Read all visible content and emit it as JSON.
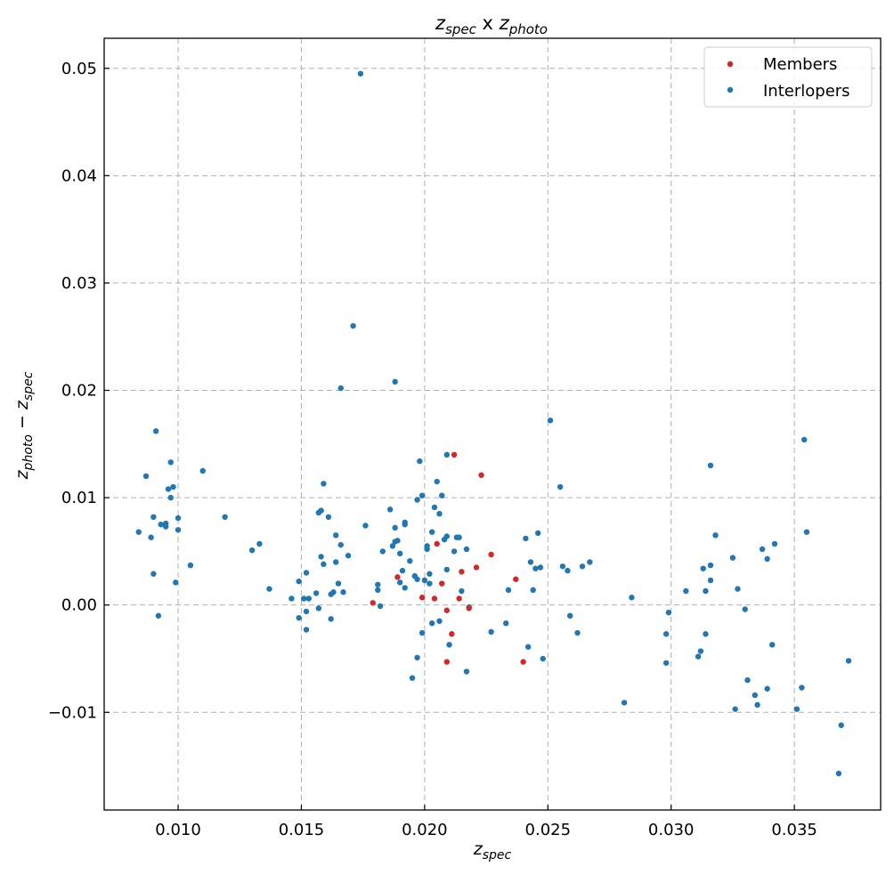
{
  "chart_data": {
    "type": "scatter",
    "title": {
      "base1": "z",
      "sub1": "spec",
      "sep": " x ",
      "base2": "z",
      "sub2": "photo"
    },
    "xlabel": {
      "base": "z",
      "sub": "spec"
    },
    "ylabel": {
      "base1": "z",
      "sub1": "photo",
      "minus": " − ",
      "base2": "z",
      "sub2": "spec"
    },
    "xlim": [
      0.007,
      0.0385
    ],
    "ylim": [
      -0.0191,
      0.0528
    ],
    "xticks": [
      0.01,
      0.015,
      0.02,
      0.025,
      0.03,
      0.035
    ],
    "xtick_labels": [
      "0.010",
      "0.015",
      "0.020",
      "0.025",
      "0.030",
      "0.035"
    ],
    "yticks": [
      -0.01,
      0.0,
      0.01,
      0.02,
      0.03,
      0.04,
      0.05
    ],
    "ytick_labels": [
      "−0.01",
      "0.00",
      "0.01",
      "0.02",
      "0.03",
      "0.04",
      "0.05"
    ],
    "grid": true,
    "legend_position": "top-right",
    "series": [
      {
        "name": "Members",
        "color": "#d62728",
        "points": [
          [
            0.0179,
            0.0002
          ],
          [
            0.0189,
            0.0026
          ],
          [
            0.0199,
            0.0007
          ],
          [
            0.0204,
            0.0006
          ],
          [
            0.0205,
            0.0057
          ],
          [
            0.0207,
            0.002
          ],
          [
            0.0209,
            -0.0005
          ],
          [
            0.0209,
            -0.0053
          ],
          [
            0.0211,
            -0.0027
          ],
          [
            0.0212,
            0.014
          ],
          [
            0.0214,
            0.0006
          ],
          [
            0.0215,
            0.0031
          ],
          [
            0.0218,
            -0.0003
          ],
          [
            0.0221,
            0.0035
          ],
          [
            0.0223,
            0.0121
          ],
          [
            0.0227,
            0.0047
          ],
          [
            0.0237,
            0.0024
          ],
          [
            0.024,
            -0.0053
          ]
        ]
      },
      {
        "name": "Interlopers",
        "color": "#1f77b4",
        "points": [
          [
            0.0084,
            0.0068
          ],
          [
            0.0087,
            0.012
          ],
          [
            0.0089,
            0.0063
          ],
          [
            0.009,
            0.0029
          ],
          [
            0.009,
            0.0082
          ],
          [
            0.0091,
            0.0162
          ],
          [
            0.0092,
            -0.001
          ],
          [
            0.0093,
            0.0075
          ],
          [
            0.0095,
            0.0076
          ],
          [
            0.0095,
            0.0073
          ],
          [
            0.0096,
            0.0108
          ],
          [
            0.0097,
            0.0133
          ],
          [
            0.0097,
            0.01
          ],
          [
            0.0098,
            0.011
          ],
          [
            0.0099,
            0.0021
          ],
          [
            0.01,
            0.007
          ],
          [
            0.01,
            0.0081
          ],
          [
            0.0105,
            0.0037
          ],
          [
            0.011,
            0.0125
          ],
          [
            0.0119,
            0.0082
          ],
          [
            0.013,
            0.0051
          ],
          [
            0.0133,
            0.0057
          ],
          [
            0.0137,
            0.0015
          ],
          [
            0.0146,
            0.0006
          ],
          [
            0.0149,
            -0.0012
          ],
          [
            0.0149,
            0.0022
          ],
          [
            0.0151,
            0.0006
          ],
          [
            0.0152,
            0.003
          ],
          [
            0.0152,
            -0.0006
          ],
          [
            0.0152,
            -0.0023
          ],
          [
            0.0153,
            0.0006
          ],
          [
            0.0156,
            0.0011
          ],
          [
            0.0157,
            -0.0003
          ],
          [
            0.0157,
            0.0086
          ],
          [
            0.0158,
            0.0088
          ],
          [
            0.0158,
            0.0045
          ],
          [
            0.0159,
            0.0038
          ],
          [
            0.0159,
            0.0113
          ],
          [
            0.0161,
            0.0082
          ],
          [
            0.0162,
            0.001
          ],
          [
            0.0162,
            -0.0013
          ],
          [
            0.0163,
            0.0012
          ],
          [
            0.0164,
            0.0065
          ],
          [
            0.0164,
            0.004
          ],
          [
            0.0165,
            0.002
          ],
          [
            0.0166,
            0.0202
          ],
          [
            0.0166,
            0.0056
          ],
          [
            0.0167,
            0.0012
          ],
          [
            0.0169,
            0.0046
          ],
          [
            0.0171,
            0.026
          ],
          [
            0.0174,
            0.0495
          ],
          [
            0.0176,
            0.0074
          ],
          [
            0.0181,
            0.0014
          ],
          [
            0.0181,
            0.0019
          ],
          [
            0.0182,
            -0.0001
          ],
          [
            0.0183,
            0.005
          ],
          [
            0.0186,
            0.0089
          ],
          [
            0.0187,
            0.0055
          ],
          [
            0.0188,
            0.0208
          ],
          [
            0.0188,
            0.0072
          ],
          [
            0.0188,
            0.0059
          ],
          [
            0.0189,
            0.006
          ],
          [
            0.019,
            0.0048
          ],
          [
            0.019,
            0.0021
          ],
          [
            0.0191,
            0.0032
          ],
          [
            0.0192,
            0.0016
          ],
          [
            0.0192,
            0.0077
          ],
          [
            0.0192,
            0.0075
          ],
          [
            0.0194,
            0.0041
          ],
          [
            0.0195,
            -0.0068
          ],
          [
            0.0196,
            0.0027
          ],
          [
            0.0197,
            -0.0049
          ],
          [
            0.0197,
            0.0024
          ],
          [
            0.0197,
            0.0098
          ],
          [
            0.0198,
            0.0134
          ],
          [
            0.0199,
            -0.0026
          ],
          [
            0.0199,
            0.0102
          ],
          [
            0.02,
            0.0023
          ],
          [
            0.0201,
            0.0052
          ],
          [
            0.0201,
            0.0055
          ],
          [
            0.0202,
            0.0029
          ],
          [
            0.0202,
            0.002
          ],
          [
            0.0203,
            -0.0017
          ],
          [
            0.0203,
            0.0068
          ],
          [
            0.0204,
            0.0091
          ],
          [
            0.0205,
            0.0115
          ],
          [
            0.0206,
            0.0085
          ],
          [
            0.0206,
            -0.0015
          ],
          [
            0.0207,
            0.0102
          ],
          [
            0.0208,
            0.0061
          ],
          [
            0.0209,
            0.014
          ],
          [
            0.0209,
            0.0064
          ],
          [
            0.0209,
            0.0033
          ],
          [
            0.021,
            -0.0037
          ],
          [
            0.0212,
            0.005
          ],
          [
            0.0213,
            0.0063
          ],
          [
            0.0214,
            0.0063
          ],
          [
            0.0215,
            0.0013
          ],
          [
            0.0217,
            0.0052
          ],
          [
            0.0217,
            -0.0062
          ],
          [
            0.0218,
            -0.0002
          ],
          [
            0.0227,
            -0.0025
          ],
          [
            0.0233,
            -0.0017
          ],
          [
            0.0234,
            0.0014
          ],
          [
            0.0241,
            0.0062
          ],
          [
            0.0242,
            -0.0039
          ],
          [
            0.0243,
            0.004
          ],
          [
            0.0244,
            0.0014
          ],
          [
            0.0245,
            0.0034
          ],
          [
            0.0246,
            0.0067
          ],
          [
            0.0247,
            0.0035
          ],
          [
            0.0248,
            -0.005
          ],
          [
            0.0251,
            0.0172
          ],
          [
            0.0255,
            0.011
          ],
          [
            0.0256,
            0.0036
          ],
          [
            0.0258,
            0.0032
          ],
          [
            0.0259,
            -0.001
          ],
          [
            0.0262,
            -0.0026
          ],
          [
            0.0264,
            0.0036
          ],
          [
            0.0267,
            0.004
          ],
          [
            0.0281,
            -0.0091
          ],
          [
            0.0284,
            0.0007
          ],
          [
            0.0298,
            -0.0027
          ],
          [
            0.0298,
            -0.0054
          ],
          [
            0.0299,
            -0.0007
          ],
          [
            0.0306,
            0.0013
          ],
          [
            0.0311,
            -0.0048
          ],
          [
            0.0312,
            -0.0043
          ],
          [
            0.0313,
            0.0034
          ],
          [
            0.0314,
            0.0013
          ],
          [
            0.0314,
            -0.0027
          ],
          [
            0.0316,
            0.0037
          ],
          [
            0.0316,
            0.013
          ],
          [
            0.0316,
            0.0023
          ],
          [
            0.0318,
            0.0065
          ],
          [
            0.0325,
            0.0044
          ],
          [
            0.0326,
            -0.0097
          ],
          [
            0.0327,
            0.0015
          ],
          [
            0.033,
            -0.0004
          ],
          [
            0.0331,
            -0.007
          ],
          [
            0.0334,
            -0.0084
          ],
          [
            0.0335,
            -0.0093
          ],
          [
            0.0337,
            0.0052
          ],
          [
            0.0339,
            -0.0078
          ],
          [
            0.0339,
            0.0043
          ],
          [
            0.0341,
            -0.0037
          ],
          [
            0.0342,
            0.0057
          ],
          [
            0.0351,
            -0.0097
          ],
          [
            0.0353,
            -0.0077
          ],
          [
            0.0354,
            0.0154
          ],
          [
            0.0355,
            0.0068
          ],
          [
            0.0368,
            -0.0157
          ],
          [
            0.0369,
            -0.0112
          ],
          [
            0.0372,
            -0.0052
          ]
        ]
      }
    ]
  }
}
